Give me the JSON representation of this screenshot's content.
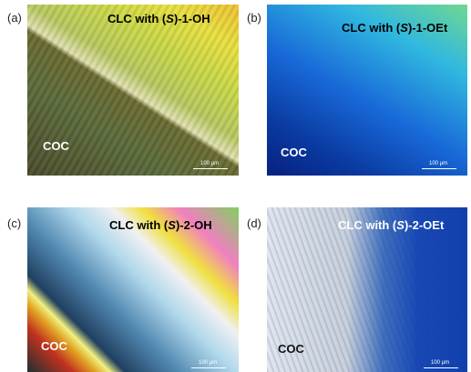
{
  "panels": [
    {
      "label": "(a)",
      "title": {
        "pre": "CLC with (",
        "italic": "S",
        "post": ")-1-OH"
      },
      "region": "COC",
      "scale": "100 μm"
    },
    {
      "label": "(b)",
      "title": {
        "pre": "CLC with (",
        "italic": "S",
        "post": ")-1-OEt"
      },
      "region": "COC",
      "scale": "100 μm"
    },
    {
      "label": "(c)",
      "title": {
        "pre": "CLC with (",
        "italic": "S",
        "post": ")-2-OH"
      },
      "region": "COC",
      "scale": "100 μm"
    },
    {
      "label": "(d)",
      "title": {
        "pre": "CLC with (",
        "italic": "S",
        "post": ")-2-OEt"
      },
      "region": "COC",
      "scale": "100 μm"
    }
  ]
}
